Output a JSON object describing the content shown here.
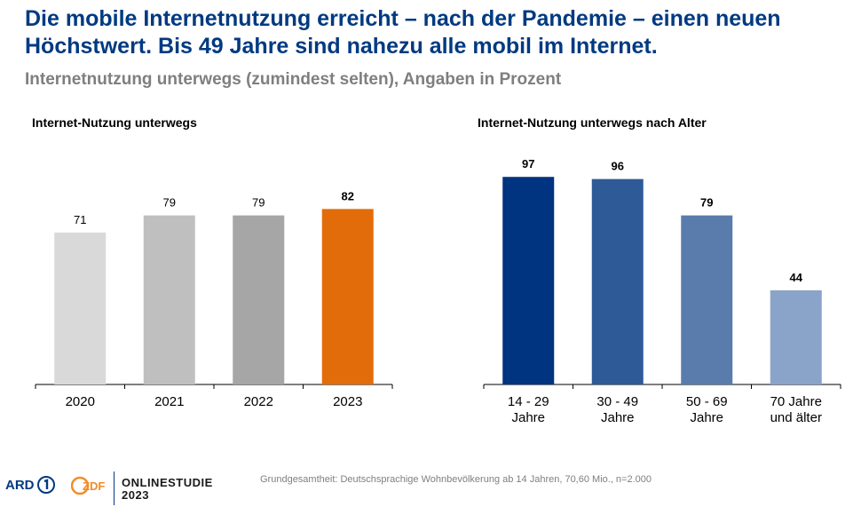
{
  "header": {
    "title": "Die mobile Internetnutzung erreicht – nach der Pandemie – einen neuen Höchstwert. Bis 49 Jahre sind nahezu alle mobil im Internet.",
    "subtitle": "Internetnutzung unterwegs (zumindest selten), Angaben in Prozent"
  },
  "chart_data": [
    {
      "type": "bar",
      "title": "Internet-Nutzung unterwegs",
      "categories": [
        "2020",
        "2021",
        "2022",
        "2023"
      ],
      "values": [
        71,
        79,
        79,
        82
      ],
      "colors": [
        "#d9d9d9",
        "#bfbfbf",
        "#a6a6a6",
        "#e36c0a"
      ],
      "ylim": [
        0,
        100
      ],
      "grid": false
    },
    {
      "type": "bar",
      "title": "Internet-Nutzung unterwegs nach Alter",
      "categories": [
        [
          "14 - 29",
          "Jahre"
        ],
        [
          "30 - 49",
          "Jahre"
        ],
        [
          "50 - 69",
          "Jahre"
        ],
        [
          "70 Jahre",
          "und älter"
        ]
      ],
      "values": [
        97,
        96,
        79,
        44
      ],
      "colors": [
        "#003380",
        "#2e5a97",
        "#5a7cad",
        "#8aa3c8"
      ],
      "ylim": [
        0,
        100
      ],
      "grid": false
    }
  ],
  "footer": {
    "note": "Grundgesamtheit: Deutschsprachige Wohnbevölkerung ab 14 Jahren, 70,60 Mio., n=2.000",
    "logo_ard": "ARD",
    "logo_zdf": "ZDF",
    "logo_study": [
      "ONLINESTUDIE",
      "2023"
    ]
  }
}
